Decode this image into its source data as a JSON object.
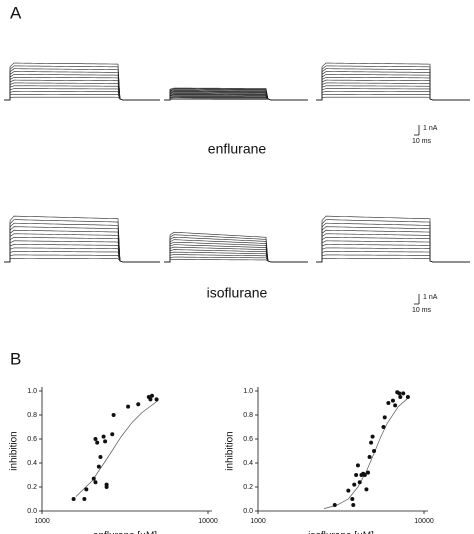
{
  "panel_a": {
    "label": "A",
    "rows": [
      {
        "drug": "enflurane",
        "scale_current": "1 nA",
        "scale_time": "10 ms"
      },
      {
        "drug": "isoflurane",
        "scale_current": "1 nA",
        "scale_time": "10 ms"
      }
    ]
  },
  "panel_b": {
    "label": "B"
  },
  "chart_data": [
    {
      "type": "scatter",
      "xlabel": "enflurane [µM]",
      "ylabel": "inhibition",
      "xscale": "log",
      "color": "#111111",
      "xlim": [
        1000,
        10000
      ],
      "xticks": [
        1000,
        10000
      ],
      "ylim": [
        0,
        1
      ],
      "yticks": [
        {
          "value": 0,
          "label": "0.0"
        },
        0.2,
        0.4,
        0.6,
        0.8,
        {
          "value": 1,
          "label": "1.0"
        }
      ],
      "points": {
        "x": [
          1550,
          1800,
          1850,
          2050,
          2100,
          2100,
          2150,
          2200,
          2250,
          2350,
          2400,
          2450,
          2450,
          2650,
          2700,
          3300,
          3800,
          4400,
          4500,
          4600,
          4900
        ],
        "y": [
          0.1,
          0.1,
          0.18,
          0.27,
          0.24,
          0.6,
          0.57,
          0.37,
          0.45,
          0.62,
          0.58,
          0.22,
          0.2,
          0.64,
          0.8,
          0.87,
          0.89,
          0.95,
          0.93,
          0.96,
          0.93
        ]
      },
      "fit": {
        "x": [
          1600,
          2000,
          2500,
          3000,
          3500,
          4000,
          5000
        ],
        "y": [
          0.12,
          0.25,
          0.45,
          0.62,
          0.74,
          0.82,
          0.92
        ]
      }
    },
    {
      "type": "scatter",
      "xlabel": "isoflurane [µM]",
      "ylabel": "inhibition",
      "xscale": "log",
      "color": "#111111",
      "xlim": [
        1000,
        10000
      ],
      "xticks": [
        1000,
        10000
      ],
      "ylim": [
        0,
        1
      ],
      "yticks": [
        {
          "value": 0,
          "label": "0.0"
        },
        0.2,
        0.4,
        0.6,
        0.8,
        {
          "value": 1,
          "label": "1.0"
        }
      ],
      "points": {
        "x": [
          2900,
          3500,
          3700,
          3750,
          3800,
          3900,
          4000,
          4100,
          4200,
          4300,
          4400,
          4500,
          4600,
          4700,
          4800,
          4900,
          5000,
          5700,
          5800,
          6100,
          6500,
          6700,
          6900,
          7100,
          7200,
          7500,
          8000
        ],
        "y": [
          0.05,
          0.17,
          0.1,
          0.05,
          0.22,
          0.3,
          0.38,
          0.24,
          0.3,
          0.31,
          0.3,
          0.18,
          0.32,
          0.45,
          0.57,
          0.62,
          0.5,
          0.7,
          0.78,
          0.9,
          0.92,
          0.88,
          0.99,
          0.98,
          0.95,
          0.98,
          0.95
        ]
      },
      "fit": {
        "x": [
          2500,
          3000,
          3500,
          4000,
          4500,
          5000,
          5500,
          6000,
          7000,
          8000
        ],
        "y": [
          0.02,
          0.05,
          0.1,
          0.2,
          0.33,
          0.48,
          0.62,
          0.73,
          0.87,
          0.94
        ]
      }
    }
  ]
}
